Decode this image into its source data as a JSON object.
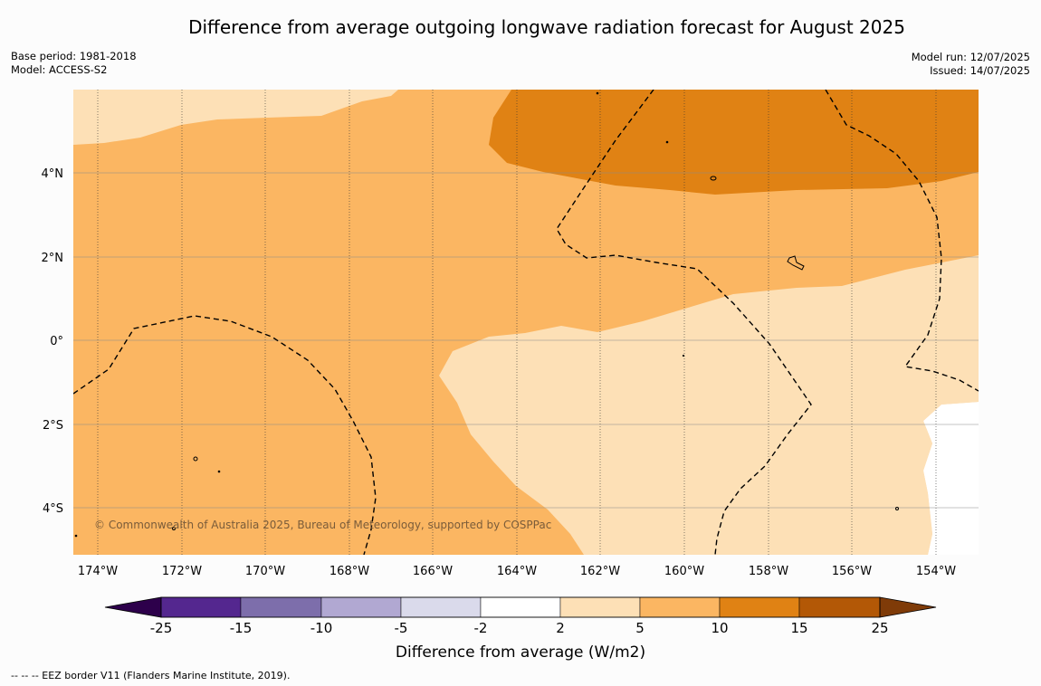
{
  "title": "Difference from average outgoing longwave radiation forecast for August 2025",
  "meta_left": {
    "base_period": "Base period: 1981-2018",
    "model": "Model: ACCESS-S2"
  },
  "meta_right": {
    "model_run": "Model run: 12/07/2025",
    "issued": "Issued: 14/07/2025"
  },
  "map": {
    "lon_ticks": [
      "174°W",
      "172°W",
      "170°W",
      "168°W",
      "166°W",
      "164°W",
      "162°W",
      "160°W",
      "158°W",
      "156°W",
      "154°W"
    ],
    "lat_ticks": [
      "4°N",
      "2°N",
      "0°",
      "2°S",
      "4°S"
    ],
    "copyright": "© Commonwealth of Australia 2025, Bureau of Meteorology, supported by COSPPac"
  },
  "colorbar": {
    "label": "Difference from average (W/m2)",
    "ticks": [
      "-25",
      "-15",
      "-10",
      "-5",
      "-2",
      "2",
      "5",
      "10",
      "15",
      "25"
    ],
    "colors": [
      "#54278f",
      "#7d6eab",
      "#b1a8d2",
      "#dadaeb",
      "#ffffff",
      "#fde0b6",
      "#fbb662",
      "#e08214",
      "#b35806"
    ],
    "extend_low_color": "#2d004b",
    "extend_high_color": "#7f3b08"
  },
  "legend_note": "-- -- -- EEZ border V11 (Flanders Marine Institute, 2019)."
}
